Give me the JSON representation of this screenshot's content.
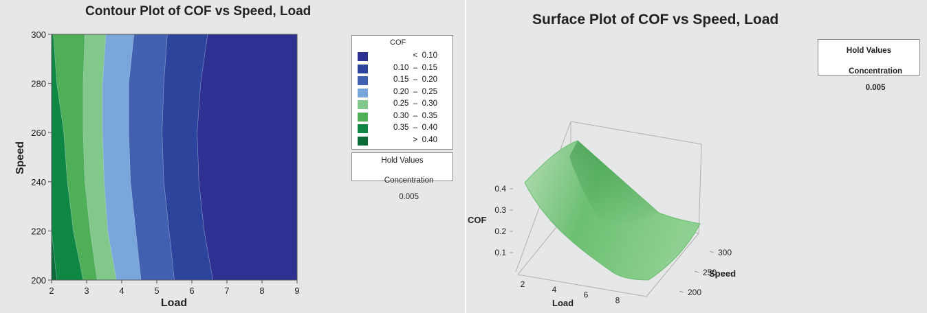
{
  "chart_data": [
    {
      "type": "contour",
      "title": "Contour Plot of COF vs Speed, Load",
      "xlabel": "Load",
      "ylabel": "Speed",
      "xlim": [
        2,
        9
      ],
      "ylim": [
        200,
        300
      ],
      "xticks": [
        "2",
        "3",
        "4",
        "5",
        "6",
        "7",
        "8",
        "9"
      ],
      "yticks": [
        "200",
        "220",
        "240",
        "260",
        "280",
        "300"
      ],
      "legend_title": "COF",
      "legend_placement": "right",
      "levels": [
        {
          "label": "<  0.10",
          "color": "#2e3191"
        },
        {
          "label": "0.10  –  0.15",
          "color": "#2d449c"
        },
        {
          "label": "0.15  –  0.20",
          "color": "#4160b0"
        },
        {
          "label": "0.20  –  0.25",
          "color": "#7aa7db"
        },
        {
          "label": "0.25  –  0.30",
          "color": "#82c88a"
        },
        {
          "label": "0.30  –  0.35",
          "color": "#4faf56"
        },
        {
          "label": "0.35  –  0.40",
          "color": "#0d8742"
        },
        {
          "label": ">  0.40",
          "color": "#0b6b38"
        }
      ],
      "boundaries": [
        {
          "cof": 0.4,
          "load_at_speed": [
            [
              200,
              2.15
            ],
            [
              220,
              2.0
            ],
            [
              240,
              1.85
            ]
          ]
        },
        {
          "cof": 0.35,
          "load_at_speed": [
            [
              200,
              2.9
            ],
            [
              220,
              2.62
            ],
            [
              240,
              2.45
            ],
            [
              260,
              2.35
            ],
            [
              280,
              2.15
            ],
            [
              300,
              2.05
            ]
          ]
        },
        {
          "cof": 0.3,
          "load_at_speed": [
            [
              200,
              3.3
            ],
            [
              220,
              3.1
            ],
            [
              240,
              2.95
            ],
            [
              260,
              2.9
            ],
            [
              280,
              2.9
            ],
            [
              300,
              2.95
            ]
          ]
        },
        {
          "cof": 0.25,
          "load_at_speed": [
            [
              200,
              3.85
            ],
            [
              220,
              3.6
            ],
            [
              240,
              3.5
            ],
            [
              260,
              3.45
            ],
            [
              280,
              3.45
            ],
            [
              300,
              3.55
            ]
          ]
        },
        {
          "cof": 0.2,
          "load_at_speed": [
            [
              200,
              4.55
            ],
            [
              220,
              4.4
            ],
            [
              240,
              4.25
            ],
            [
              260,
              4.2
            ],
            [
              280,
              4.2
            ],
            [
              300,
              4.35
            ]
          ]
        },
        {
          "cof": 0.15,
          "load_at_speed": [
            [
              200,
              5.5
            ],
            [
              220,
              5.35
            ],
            [
              240,
              5.2
            ],
            [
              260,
              5.15
            ],
            [
              280,
              5.2
            ],
            [
              300,
              5.3
            ]
          ]
        },
        {
          "cof": 0.1,
          "load_at_speed": [
            [
              200,
              6.6
            ],
            [
              220,
              6.35
            ],
            [
              240,
              6.2
            ],
            [
              260,
              6.15
            ],
            [
              280,
              6.25
            ],
            [
              300,
              6.45
            ]
          ]
        }
      ],
      "hold_values": {
        "title": "Hold Values",
        "label": "Concentration",
        "value": "0.005"
      }
    },
    {
      "type": "surface",
      "title": "Surface Plot of COF vs Speed, Load",
      "xlabel": "Load",
      "ylabel": "Speed",
      "zlabel": "COF",
      "x_ticks": [
        "2",
        "4",
        "6",
        "8"
      ],
      "y_ticks": [
        "200",
        "250",
        "300"
      ],
      "z_ticks": [
        "0.1",
        "0.2",
        "0.3",
        "0.4"
      ],
      "color": "#6cbf72",
      "hold_values": {
        "title": "Hold Values",
        "label": "Concentration",
        "value": "0.005"
      }
    }
  ]
}
